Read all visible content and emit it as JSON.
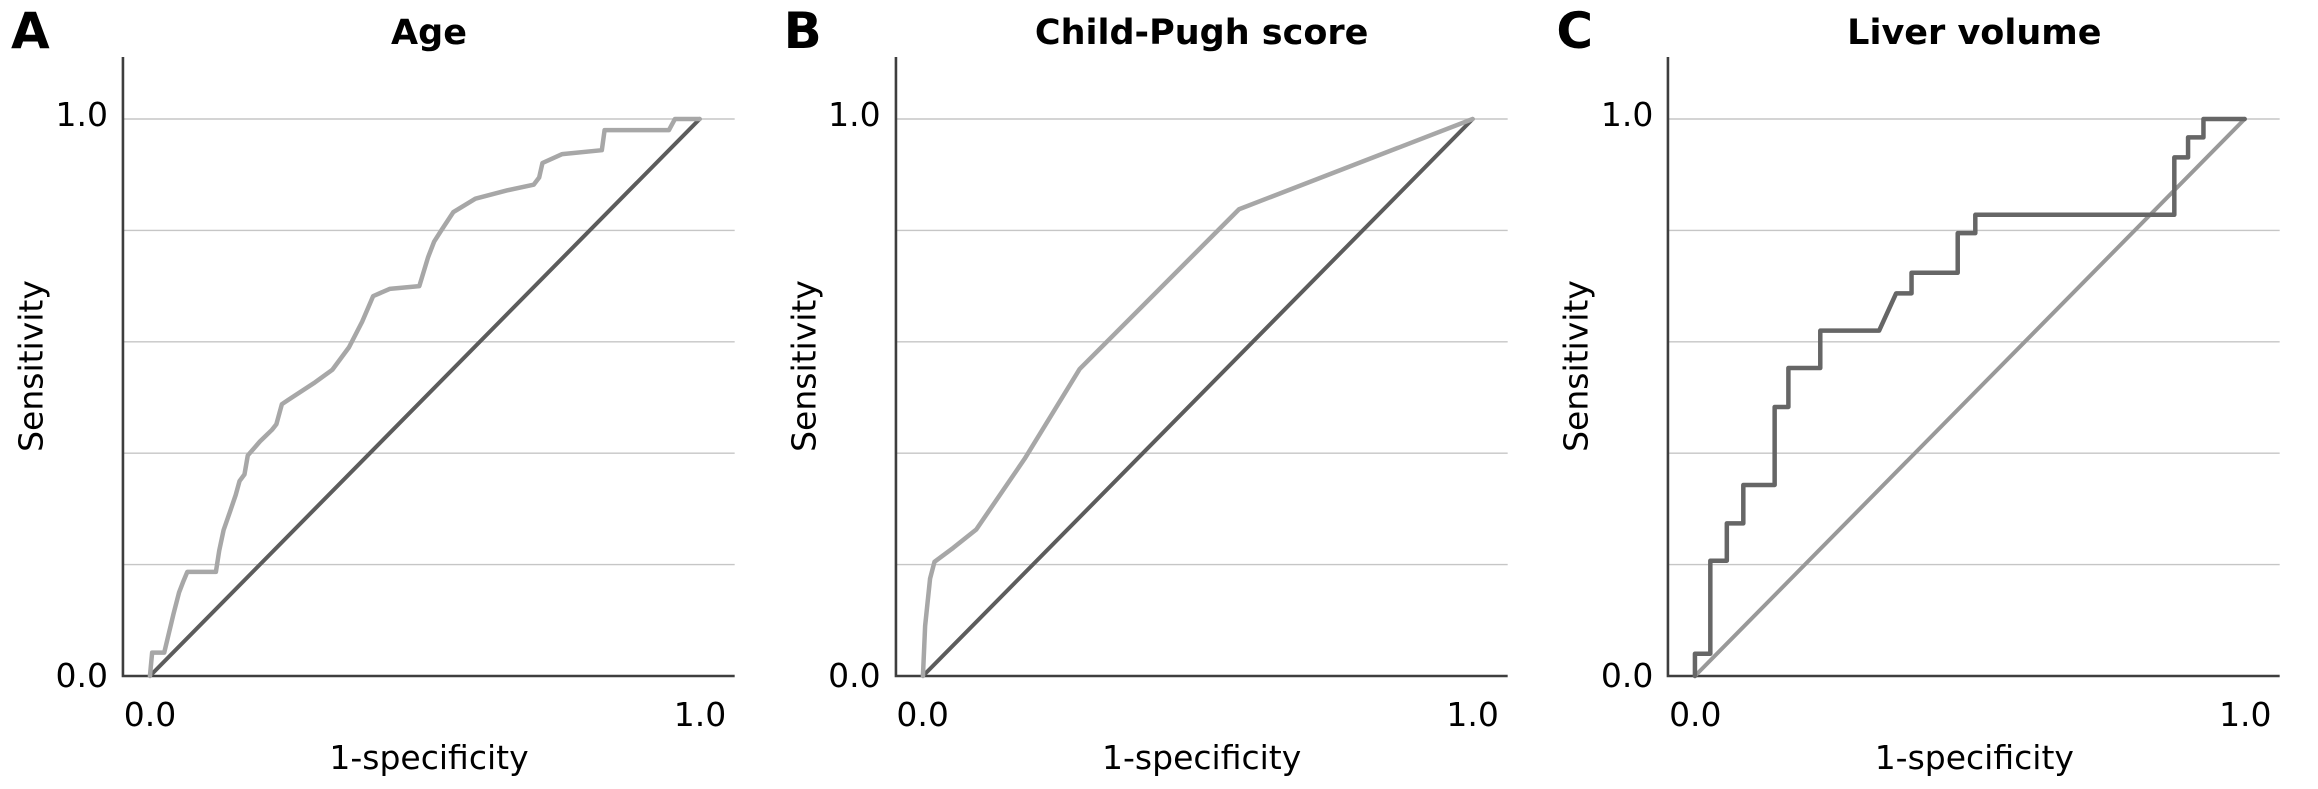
{
  "style": {
    "background": "#ffffff",
    "text_color": "#000000",
    "axis_color": "#3e3e3e",
    "gridline_color": "#c6c6c6"
  },
  "chart_data": [
    {
      "panel_label": "A",
      "type": "line",
      "title": "Age",
      "xlabel": "1-specificity",
      "ylabel": "Sensitivity",
      "xlim": [
        0,
        1
      ],
      "ylim": [
        0,
        1
      ],
      "x_tick_labels": [
        "0.0",
        "1.0"
      ],
      "y_tick_labels": [
        "0.0",
        "1.0"
      ],
      "gridline_ys": [
        0.2,
        0.4,
        0.6,
        0.8,
        1.0
      ],
      "legend": "none",
      "series": [
        {
          "name": "reference-diagonal",
          "color": "#5c5c5c",
          "stroke_width": 4,
          "points": [
            [
              0,
              0
            ],
            [
              1,
              1
            ]
          ]
        },
        {
          "name": "roc-curve",
          "color": "#a7a7a7",
          "stroke_width": 4.5,
          "points": [
            [
              0,
              0
            ],
            [
              0.004,
              0.042
            ],
            [
              0.026,
              0.042
            ],
            [
              0.043,
              0.112
            ],
            [
              0.053,
              0.15
            ],
            [
              0.06,
              0.168
            ],
            [
              0.068,
              0.187
            ],
            [
              0.12,
              0.187
            ],
            [
              0.126,
              0.225
            ],
            [
              0.134,
              0.262
            ],
            [
              0.146,
              0.296
            ],
            [
              0.156,
              0.325
            ],
            [
              0.163,
              0.35
            ],
            [
              0.172,
              0.362
            ],
            [
              0.178,
              0.396
            ],
            [
              0.2,
              0.421
            ],
            [
              0.222,
              0.442
            ],
            [
              0.23,
              0.452
            ],
            [
              0.24,
              0.488
            ],
            [
              0.252,
              0.496
            ],
            [
              0.3,
              0.527
            ],
            [
              0.332,
              0.55
            ],
            [
              0.362,
              0.59
            ],
            [
              0.386,
              0.636
            ],
            [
              0.406,
              0.682
            ],
            [
              0.436,
              0.695
            ],
            [
              0.49,
              0.7
            ],
            [
              0.506,
              0.752
            ],
            [
              0.517,
              0.78
            ],
            [
              0.53,
              0.8
            ],
            [
              0.552,
              0.833
            ],
            [
              0.592,
              0.857
            ],
            [
              0.65,
              0.872
            ],
            [
              0.698,
              0.882
            ],
            [
              0.708,
              0.895
            ],
            [
              0.714,
              0.921
            ],
            [
              0.75,
              0.937
            ],
            [
              0.822,
              0.944
            ],
            [
              0.827,
              0.98
            ],
            [
              0.944,
              0.98
            ],
            [
              0.955,
              1.0
            ],
            [
              1,
              1
            ]
          ]
        }
      ]
    },
    {
      "panel_label": "B",
      "type": "line",
      "title": "Child-Pugh score",
      "xlabel": "1-specificity",
      "ylabel": "Sensitivity",
      "xlim": [
        0,
        1
      ],
      "ylim": [
        0,
        1
      ],
      "x_tick_labels": [
        "0.0",
        "1.0"
      ],
      "y_tick_labels": [
        "0.0",
        "1.0"
      ],
      "gridline_ys": [
        0.2,
        0.4,
        0.6,
        0.8,
        1.0
      ],
      "legend": "none",
      "series": [
        {
          "name": "reference-diagonal",
          "color": "#5c5c5c",
          "stroke_width": 4,
          "points": [
            [
              0,
              0
            ],
            [
              1,
              1
            ]
          ]
        },
        {
          "name": "roc-curve",
          "color": "#a7a7a7",
          "stroke_width": 4.5,
          "points": [
            [
              0,
              0
            ],
            [
              0.004,
              0.09
            ],
            [
              0.013,
              0.175
            ],
            [
              0.021,
              0.205
            ],
            [
              0.055,
              0.23
            ],
            [
              0.097,
              0.263
            ],
            [
              0.185,
              0.39
            ],
            [
              0.285,
              0.551
            ],
            [
              0.575,
              0.838
            ],
            [
              1,
              1
            ]
          ]
        }
      ]
    },
    {
      "panel_label": "C",
      "type": "line",
      "title": "Liver volume",
      "xlabel": "1-specificity",
      "ylabel": "Sensitivity",
      "xlim": [
        0,
        1
      ],
      "ylim": [
        0,
        1
      ],
      "x_tick_labels": [
        "0.0",
        "1.0"
      ],
      "y_tick_labels": [
        "0.0",
        "1.0"
      ],
      "gridline_ys": [
        0.2,
        0.4,
        0.6,
        0.8,
        1.0
      ],
      "legend": "none",
      "series": [
        {
          "name": "reference-diagonal",
          "color": "#999999",
          "stroke_width": 4,
          "points": [
            [
              0,
              0
            ],
            [
              1,
              1
            ]
          ]
        },
        {
          "name": "roc-curve",
          "color": "#666666",
          "stroke_width": 4.5,
          "points": [
            [
              0,
              0
            ],
            [
              0,
              0.04
            ],
            [
              0.028,
              0.04
            ],
            [
              0.028,
              0.207
            ],
            [
              0.058,
              0.207
            ],
            [
              0.058,
              0.274
            ],
            [
              0.088,
              0.274
            ],
            [
              0.088,
              0.343
            ],
            [
              0.145,
              0.343
            ],
            [
              0.145,
              0.483
            ],
            [
              0.17,
              0.483
            ],
            [
              0.17,
              0.553
            ],
            [
              0.228,
              0.553
            ],
            [
              0.228,
              0.62
            ],
            [
              0.335,
              0.62
            ],
            [
              0.366,
              0.687
            ],
            [
              0.394,
              0.687
            ],
            [
              0.394,
              0.724
            ],
            [
              0.478,
              0.724
            ],
            [
              0.478,
              0.795
            ],
            [
              0.51,
              0.795
            ],
            [
              0.51,
              0.828
            ],
            [
              0.872,
              0.828
            ],
            [
              0.872,
              0.931
            ],
            [
              0.897,
              0.931
            ],
            [
              0.897,
              0.967
            ],
            [
              0.925,
              0.967
            ],
            [
              0.925,
              1.0
            ],
            [
              1,
              1
            ]
          ]
        }
      ]
    }
  ]
}
